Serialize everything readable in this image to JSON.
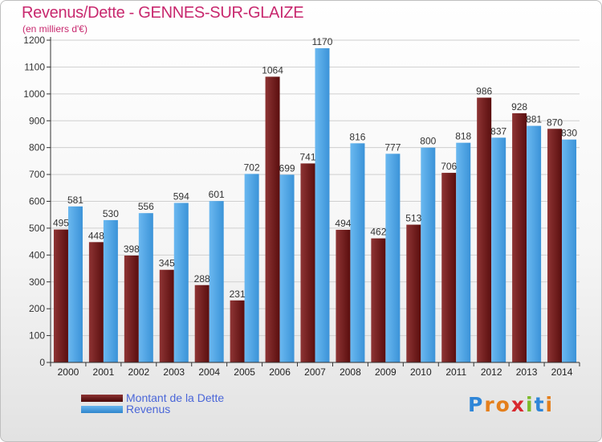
{
  "title": "Revenus/Dette - GENNES-SUR-GLAIZE",
  "subtitle": "(en milliers d'€)",
  "colors": {
    "debt": "#6e1a1a",
    "revenue": "#4aa3e4",
    "title": "#c8286e",
    "legend_text": "#4a66d8"
  },
  "logo": {
    "text": "Proxiti",
    "letters": [
      "P",
      "r",
      "o",
      "x",
      "i",
      "t",
      "i"
    ],
    "letter_colors": [
      "#2f86d8",
      "#e47f1c",
      "#e47f1c",
      "#d8282f",
      "#7dbb2a",
      "#2f86d8",
      "#e47f1c"
    ]
  },
  "chart_data": {
    "type": "bar",
    "title": "Revenus/Dette - GENNES-SUR-GLAIZE",
    "ylabel": "(en milliers d'€)",
    "xlabel": "",
    "ylim": [
      0,
      1200
    ],
    "yticks": [
      0,
      100,
      200,
      300,
      400,
      500,
      600,
      700,
      800,
      900,
      1000,
      1100,
      1200
    ],
    "grid": true,
    "legend_position": "bottom-left",
    "categories": [
      "2000",
      "2001",
      "2002",
      "2003",
      "2004",
      "2005",
      "2006",
      "2007",
      "2008",
      "2009",
      "2010",
      "2011",
      "2012",
      "2013",
      "2014"
    ],
    "series": [
      {
        "name": "Montant de la Dette",
        "color": "#6e1a1a",
        "values": [
          495,
          448,
          398,
          345,
          288,
          231,
          1064,
          741,
          494,
          462,
          513,
          706,
          986,
          928,
          870
        ]
      },
      {
        "name": "Revenus",
        "color": "#4aa3e4",
        "values": [
          581,
          530,
          556,
          594,
          601,
          702,
          699,
          1170,
          816,
          777,
          800,
          818,
          837,
          881,
          830
        ]
      }
    ]
  }
}
